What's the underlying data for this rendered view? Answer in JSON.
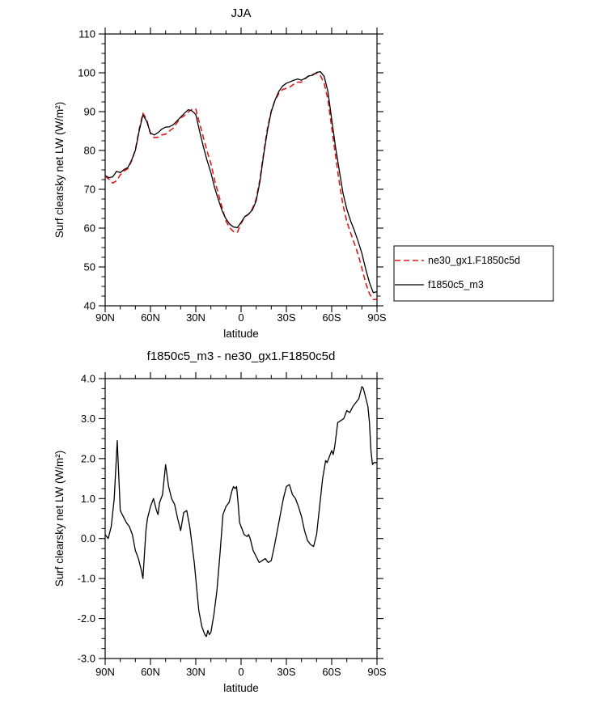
{
  "figure": {
    "background": "#ffffff",
    "frame_color": "#000000"
  },
  "chart_data": [
    {
      "id": "top",
      "type": "line",
      "title": "JJA",
      "xlabel": "latitude",
      "ylabel": "Surf clearsky net LW (W/m²)",
      "xlim": [
        90,
        -90
      ],
      "ylim": [
        40,
        110
      ],
      "grid": false,
      "xticks": [
        90,
        60,
        30,
        0,
        -30,
        -60,
        -90
      ],
      "xtick_labels": [
        "90N",
        "60N",
        "30N",
        "0",
        "30S",
        "60S",
        "90S"
      ],
      "yticks": [
        40,
        50,
        60,
        70,
        80,
        90,
        100,
        110
      ],
      "ytick_labels": [
        "40",
        "50",
        "60",
        "70",
        "80",
        "90",
        "100",
        "110"
      ],
      "x_minor_step": 10,
      "y_minor_step": 2.5,
      "legend": {
        "position": "outside-right-bottom"
      },
      "series": [
        {
          "name": "ne30_gx1.F1850c5d",
          "color": "#e21818",
          "style": "dashed",
          "dash": "7,4",
          "x": [
            90,
            87.5,
            85,
            82.5,
            80,
            77.5,
            75,
            72.5,
            70,
            67.5,
            65,
            62.5,
            60,
            57.5,
            55,
            52.5,
            50,
            47.5,
            45,
            42.5,
            40,
            37.5,
            35,
            32.5,
            30,
            27.5,
            25,
            22.5,
            20,
            17.5,
            15,
            12.5,
            10,
            7.5,
            5,
            2.5,
            0,
            -2.5,
            -5,
            -7.5,
            -10,
            -12.5,
            -15,
            -17.5,
            -20,
            -22.5,
            -25,
            -27.5,
            -30,
            -32.5,
            -35,
            -37.5,
            -40,
            -42.5,
            -45,
            -47.5,
            -50,
            -52.5,
            -55,
            -57.5,
            -60,
            -62.5,
            -65,
            -67.5,
            -70,
            -72.5,
            -75,
            -77.5,
            -80,
            -82.5,
            -85,
            -87.5,
            -90
          ],
          "y": [
            73.4,
            72.6,
            71.6,
            72.2,
            73.7,
            74.7,
            75.3,
            77.3,
            80.2,
            85.4,
            89.6,
            88.0,
            84.3,
            83.3,
            83.4,
            84.0,
            84.2,
            85.0,
            85.7,
            87.1,
            88.4,
            89.0,
            89.9,
            90.6,
            90.7,
            87.0,
            83.4,
            79.8,
            76.7,
            72.3,
            68.8,
            65.2,
            61.8,
            60.1,
            59.1,
            58.9,
            61.2,
            62.9,
            63.6,
            65.0,
            67.5,
            72.6,
            79.5,
            85.8,
            90.2,
            92.9,
            94.7,
            95.7,
            96.0,
            96.4,
            97.1,
            97.6,
            97.6,
            98.5,
            99.3,
            99.6,
            99.9,
            99.3,
            97.3,
            93.2,
            85.8,
            78.8,
            71.9,
            65.9,
            61.7,
            58.8,
            56.1,
            53.2,
            49.7,
            45.9,
            43.1,
            41.6,
            41.7
          ]
        },
        {
          "name": "f1850c5_m3",
          "color": "#000000",
          "style": "solid",
          "dash": null,
          "x": [
            90,
            87.5,
            85,
            82.5,
            80,
            77.5,
            75,
            72.5,
            70,
            67.5,
            65,
            62.5,
            60,
            57.5,
            55,
            52.5,
            50,
            47.5,
            45,
            42.5,
            40,
            37.5,
            35,
            32.5,
            30,
            27.5,
            25,
            22.5,
            20,
            17.5,
            15,
            12.5,
            10,
            7.5,
            5,
            2.5,
            0,
            -2.5,
            -5,
            -7.5,
            -10,
            -12.5,
            -15,
            -17.5,
            -20,
            -22.5,
            -25,
            -27.5,
            -30,
            -32.5,
            -35,
            -37.5,
            -40,
            -42.5,
            -45,
            -47.5,
            -50,
            -52.5,
            -55,
            -57.5,
            -60,
            -62.5,
            -65,
            -67.5,
            -70,
            -72.5,
            -75,
            -77.5,
            -80,
            -82.5,
            -85,
            -87.5,
            -90
          ],
          "y": [
            73.5,
            73.0,
            73.2,
            74.6,
            74.3,
            75.1,
            75.6,
            77.5,
            80.0,
            85.0,
            89.2,
            87.5,
            84.5,
            84.0,
            84.6,
            85.5,
            86.0,
            86.1,
            86.6,
            87.6,
            88.6,
            89.6,
            90.5,
            90.2,
            89.3,
            85.0,
            81.0,
            77.4,
            74.3,
            70.4,
            67.3,
            64.4,
            62.4,
            61.0,
            60.3,
            60.1,
            61.5,
            63.0,
            63.6,
            64.7,
            67.0,
            72.0,
            79.0,
            85.2,
            90.0,
            93.0,
            95.2,
            96.6,
            97.3,
            97.7,
            98.1,
            98.4,
            98.1,
            98.6,
            99.2,
            99.4,
            100.1,
            100.3,
            99.1,
            95.2,
            88.0,
            81.0,
            74.9,
            69.0,
            64.9,
            61.9,
            59.4,
            56.6,
            53.5,
            49.5,
            46.0,
            43.4,
            43.6
          ]
        }
      ]
    },
    {
      "id": "bottom",
      "type": "line",
      "title": "f1850c5_m3 - ne30_gx1.F1850c5d",
      "xlabel": "latitude",
      "ylabel": "Surf clearsky net LW (W/m²)",
      "xlim": [
        90,
        -90
      ],
      "ylim": [
        -3,
        4
      ],
      "grid": false,
      "xticks": [
        90,
        60,
        30,
        0,
        -30,
        -60,
        -90
      ],
      "xtick_labels": [
        "90N",
        "60N",
        "30N",
        "0",
        "30S",
        "60S",
        "90S"
      ],
      "yticks": [
        -3,
        -2,
        -1,
        0,
        1,
        2,
        3,
        4
      ],
      "ytick_labels": [
        "-3.0",
        "-2.0",
        "-1.0",
        "0.0",
        "1.0",
        "2.0",
        "3.0",
        "4.0"
      ],
      "x_minor_step": 10,
      "y_minor_step": 0.25,
      "legend": null,
      "series": [
        {
          "name": "f1850c5_m3 - ne30_gx1.F1850c5d",
          "color": "#000000",
          "style": "solid",
          "dash": null,
          "x": [
            90,
            88,
            86,
            84,
            82,
            80,
            78,
            76,
            74,
            72,
            70,
            68,
            66,
            65,
            64,
            63,
            62,
            60,
            58,
            56,
            55,
            54,
            52,
            50,
            48,
            46,
            44,
            42,
            40,
            38,
            36,
            34,
            33,
            31,
            30,
            28,
            26,
            24,
            23,
            22,
            21,
            20,
            18,
            16,
            14,
            12,
            10,
            8,
            6,
            5,
            4,
            3,
            2,
            1,
            0,
            -2,
            -4,
            -5,
            -6,
            -8,
            -10,
            -12,
            -14,
            -16,
            -18,
            -20,
            -22,
            -24,
            -26,
            -28,
            -30,
            -32,
            -34,
            -36,
            -38,
            -40,
            -42,
            -44,
            -46,
            -48,
            -50,
            -52,
            -54,
            -56,
            -57,
            -58,
            -60,
            -61,
            -62,
            -64,
            -66,
            -68,
            -70,
            -72,
            -74,
            -76,
            -78,
            -80,
            -81,
            -82,
            -84,
            -85,
            -86,
            -87,
            -88,
            -90
          ],
          "y": [
            0.1,
            0.0,
            0.3,
            1.0,
            2.45,
            0.7,
            0.55,
            0.4,
            0.3,
            0.1,
            -0.3,
            -0.5,
            -0.8,
            -1.0,
            -0.4,
            0.2,
            0.5,
            0.8,
            1.0,
            0.7,
            0.6,
            0.9,
            1.1,
            1.85,
            1.3,
            1.0,
            0.85,
            0.5,
            0.2,
            0.65,
            0.7,
            0.3,
            0.0,
            -0.6,
            -1.0,
            -1.8,
            -2.2,
            -2.4,
            -2.45,
            -2.3,
            -2.4,
            -2.35,
            -1.9,
            -1.3,
            -0.4,
            0.6,
            0.8,
            0.9,
            1.2,
            1.3,
            1.25,
            1.3,
            0.9,
            0.4,
            0.3,
            0.1,
            0.05,
            0.1,
            0.0,
            -0.3,
            -0.45,
            -0.6,
            -0.55,
            -0.5,
            -0.6,
            -0.55,
            -0.2,
            0.2,
            0.6,
            1.0,
            1.3,
            1.35,
            1.1,
            1.0,
            0.8,
            0.55,
            0.2,
            -0.05,
            -0.15,
            -0.2,
            0.1,
            0.8,
            1.5,
            1.95,
            1.9,
            2.0,
            2.2,
            2.1,
            2.3,
            2.9,
            2.95,
            3.0,
            3.2,
            3.15,
            3.3,
            3.4,
            3.5,
            3.8,
            3.75,
            3.6,
            3.3,
            2.9,
            2.2,
            1.85,
            1.9,
            1.9
          ]
        }
      ]
    }
  ]
}
